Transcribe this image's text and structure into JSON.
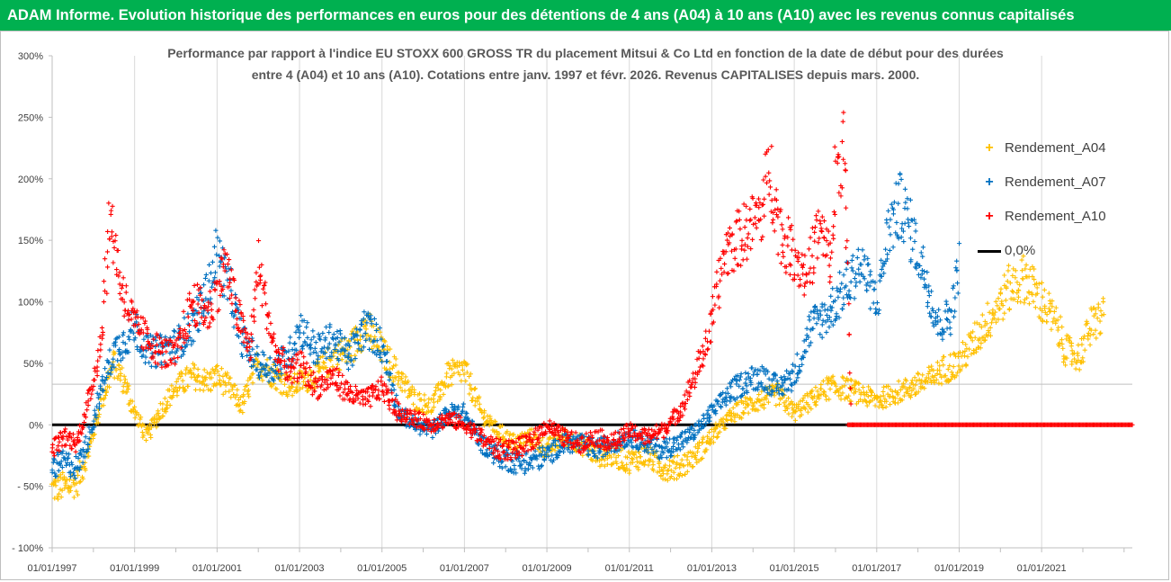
{
  "header": {
    "title": "ADAM Informe. Evolution historique des performances en euros pour des détentions de 4 ans (A04) à 10 ans (A10) avec les revenus connus capitalisés"
  },
  "chart_data": {
    "type": "scatter",
    "title_line1": "Performance par rapport à l'indice EU STOXX 600 GROSS TR  du placement Mitsui & Co Ltd en fonction de la date de début pour des durées",
    "title_line2": "entre 4 (A04) et 10 ans (A10). Cotations entre janv. 1997 et févr. 2026. Revenus CAPITALISES depuis mars. 2000.",
    "xlabel": "",
    "ylabel": "",
    "ylim": [
      -100,
      300
    ],
    "xlim": [
      1997.0,
      2023.2
    ],
    "y_ticks": [
      "300%",
      "250%",
      "200%",
      "150%",
      "100%",
      "50%",
      "0%",
      "- 50%",
      "- 100%"
    ],
    "y_tick_values": [
      300,
      250,
      200,
      150,
      100,
      50,
      0,
      -50,
      -100
    ],
    "x_ticks": [
      "01/01/1997",
      "01/01/1999",
      "01/01/2001",
      "01/01/2003",
      "01/01/2005",
      "01/01/2007",
      "01/01/2009",
      "01/01/2011",
      "01/01/2013",
      "01/01/2015",
      "01/01/2017",
      "01/01/2019",
      "01/01/2021"
    ],
    "x_tick_values": [
      1997,
      1999,
      2001,
      2003,
      2005,
      2007,
      2009,
      2011,
      2013,
      2015,
      2017,
      2019,
      2021
    ],
    "series": [
      {
        "name": "Rendement_A04",
        "color": "#ffc000",
        "x": [
          1997.0,
          1997.3,
          1997.6,
          1997.9,
          1998.2,
          1998.5,
          1998.8,
          1999.0,
          1999.3,
          1999.6,
          2000.0,
          2000.4,
          2000.8,
          2001.0,
          2001.3,
          2001.6,
          2002.0,
          2002.4,
          2002.8,
          2003.0,
          2003.4,
          2003.8,
          2004.2,
          2004.6,
          2005.0,
          2005.4,
          2005.8,
          2006.2,
          2006.6,
          2007.0,
          2007.4,
          2007.8,
          2008.2,
          2008.6,
          2009.0,
          2009.4,
          2009.8,
          2010.2,
          2010.6,
          2011.0,
          2011.4,
          2011.8,
          2012.2,
          2012.6,
          2013.0,
          2013.4,
          2013.8,
          2014.2,
          2014.6,
          2015.0,
          2015.4,
          2015.8,
          2016.2,
          2016.6,
          2017.0,
          2017.4,
          2017.8,
          2018.2,
          2018.6,
          2019.0,
          2019.4,
          2019.8,
          2020.2,
          2020.6,
          2021.0,
          2021.3,
          2021.6,
          2021.9,
          2022.2,
          2022.5
        ],
        "values": [
          -52,
          -50,
          -47,
          -20,
          20,
          50,
          30,
          10,
          -10,
          10,
          30,
          40,
          35,
          40,
          30,
          15,
          50,
          40,
          30,
          35,
          40,
          55,
          60,
          80,
          60,
          40,
          20,
          15,
          40,
          45,
          10,
          -5,
          -15,
          -10,
          -20,
          -10,
          -15,
          -25,
          -25,
          -30,
          -25,
          -35,
          -35,
          -25,
          -10,
          5,
          15,
          20,
          25,
          10,
          20,
          30,
          30,
          25,
          20,
          25,
          30,
          35,
          45,
          50,
          70,
          90,
          110,
          120,
          100,
          85,
          60,
          55,
          80,
          90
        ]
      },
      {
        "name": "Rendement_A07",
        "color": "#0070c0",
        "x": [
          1997.0,
          1997.3,
          1997.6,
          1997.9,
          1998.2,
          1998.5,
          1998.8,
          1999.0,
          1999.3,
          1999.6,
          2000.0,
          2000.4,
          2000.8,
          2001.0,
          2001.3,
          2001.6,
          2002.0,
          2002.4,
          2002.8,
          2003.0,
          2003.4,
          2003.8,
          2004.2,
          2004.6,
          2005.0,
          2005.4,
          2005.8,
          2006.2,
          2006.6,
          2007.0,
          2007.4,
          2007.8,
          2008.2,
          2008.6,
          2009.0,
          2009.4,
          2009.8,
          2010.2,
          2010.6,
          2011.0,
          2011.4,
          2011.8,
          2012.2,
          2012.6,
          2013.0,
          2013.4,
          2013.8,
          2014.2,
          2014.6,
          2015.0,
          2015.4,
          2015.8,
          2016.2,
          2016.6,
          2017.0,
          2017.3,
          2017.6,
          2017.9,
          2018.2,
          2018.5,
          2018.8,
          2019.0
        ],
        "values": [
          -35,
          -30,
          -35,
          -10,
          30,
          60,
          70,
          80,
          60,
          60,
          65,
          80,
          110,
          140,
          110,
          70,
          50,
          45,
          60,
          80,
          60,
          70,
          55,
          80,
          65,
          10,
          0,
          -5,
          10,
          10,
          -15,
          -25,
          -30,
          -30,
          -25,
          -15,
          -15,
          -20,
          -15,
          -10,
          -15,
          -20,
          -15,
          -5,
          10,
          25,
          35,
          40,
          30,
          40,
          80,
          90,
          110,
          130,
          100,
          160,
          180,
          150,
          120,
          80,
          90,
          130
        ]
      },
      {
        "name": "Rendement_A10",
        "color": "#ff0000",
        "x": [
          1997.0,
          1997.3,
          1997.6,
          1997.9,
          1998.2,
          1998.4,
          1998.7,
          1999.0,
          1999.3,
          1999.6,
          2000.0,
          2000.4,
          2000.8,
          2001.0,
          2001.2,
          2001.5,
          2001.8,
          2002.0,
          2002.4,
          2002.8,
          2003.0,
          2003.4,
          2003.8,
          2004.2,
          2004.6,
          2005.0,
          2005.4,
          2005.8,
          2006.2,
          2006.6,
          2007.0,
          2007.4,
          2007.8,
          2008.2,
          2008.6,
          2009.0,
          2009.4,
          2009.8,
          2010.2,
          2010.6,
          2011.0,
          2011.4,
          2011.8,
          2012.2,
          2012.6,
          2013.0,
          2013.3,
          2013.6,
          2013.9,
          2014.2,
          2014.4,
          2014.7,
          2015.0,
          2015.3,
          2015.6,
          2015.9,
          2016.0,
          2016.2,
          2016.4
        ],
        "values": [
          -20,
          -10,
          -15,
          20,
          70,
          170,
          110,
          80,
          70,
          60,
          55,
          100,
          90,
          110,
          130,
          90,
          60,
          130,
          60,
          40,
          50,
          30,
          40,
          25,
          20,
          30,
          10,
          5,
          0,
          5,
          0,
          -10,
          -20,
          -20,
          -15,
          0,
          -10,
          -15,
          -10,
          -15,
          -5,
          -10,
          -5,
          10,
          40,
          80,
          140,
          150,
          160,
          170,
          210,
          150,
          140,
          120,
          160,
          130,
          200,
          230,
          0
        ]
      },
      {
        "name": "0,0%",
        "color": "#000000",
        "x": [
          1997.0,
          2016.3
        ],
        "values": [
          0,
          0
        ]
      }
    ],
    "zero_tail": {
      "series": "Rendement_A10",
      "x_start": 2016.3,
      "x_end": 2023.2,
      "value": 0
    },
    "legend_position": "right"
  }
}
